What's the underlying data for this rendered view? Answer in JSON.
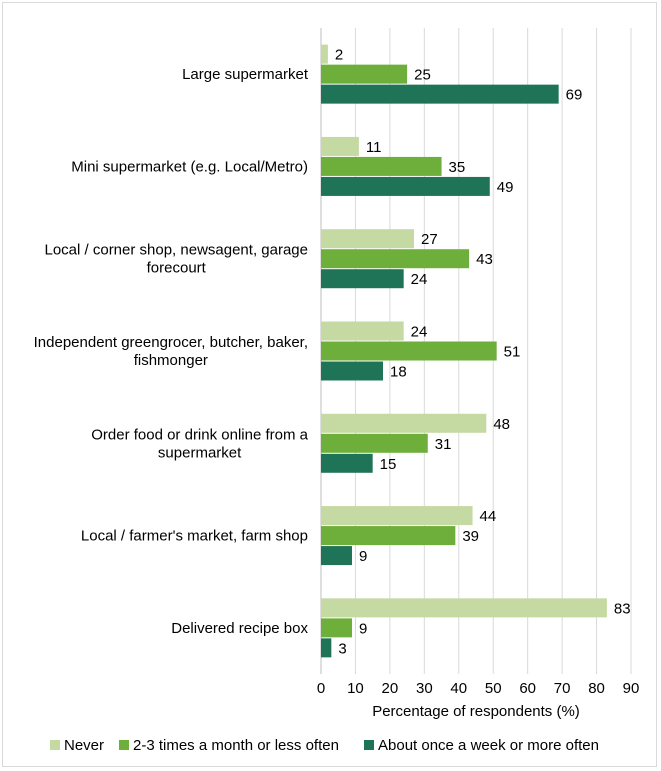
{
  "chart_data": {
    "type": "bar",
    "orientation": "horizontal",
    "categories": [
      [
        "Large supermarket"
      ],
      [
        "Mini supermarket (e.g. Local/Metro)"
      ],
      [
        "Local / corner shop, newsagent, garage",
        "forecourt"
      ],
      [
        "Independent greengrocer, butcher, baker,",
        "fishmonger"
      ],
      [
        "Order food or drink online from a",
        "supermarket"
      ],
      [
        "Local / farmer's market, farm shop"
      ],
      [
        "Delivered recipe box"
      ]
    ],
    "series": [
      {
        "name": "Never",
        "color": "#c5d9a2",
        "values": [
          2,
          11,
          27,
          24,
          48,
          44,
          83
        ]
      },
      {
        "name": "2-3 times a month or less often",
        "color": "#6eae3b",
        "values": [
          25,
          35,
          43,
          51,
          31,
          39,
          9
        ]
      },
      {
        "name": "About once a week or more often",
        "color": "#1f7458",
        "values": [
          69,
          49,
          24,
          18,
          15,
          9,
          3
        ]
      }
    ],
    "xlabel": "Percentage of respondents (%)",
    "xlim": [
      0,
      90
    ],
    "xticks": [
      0,
      10,
      20,
      30,
      40,
      50,
      60,
      70,
      80,
      90
    ],
    "gridlines": "vertical",
    "legend_position": "bottom"
  }
}
